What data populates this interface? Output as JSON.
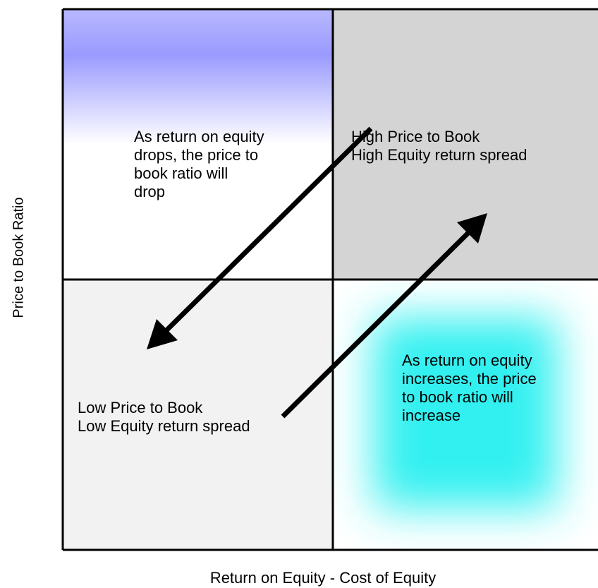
{
  "y_axis_label": "Price to Book Ratio",
  "x_axis_label": "Return on Equity - Cost of Equity",
  "quadrants": [
    {
      "lines": [
        "As return on equity",
        "drops, the price to",
        "book ratio will",
        "drop"
      ]
    },
    {
      "lines": [
        "High Price to Book",
        "High Equity return spread"
      ]
    },
    {
      "lines": [
        "Low Price to Book",
        "Low Equity return spread"
      ]
    },
    {
      "lines": [
        "As return on equity",
        "increases, the price",
        "to book ratio will",
        "increase"
      ]
    }
  ]
}
